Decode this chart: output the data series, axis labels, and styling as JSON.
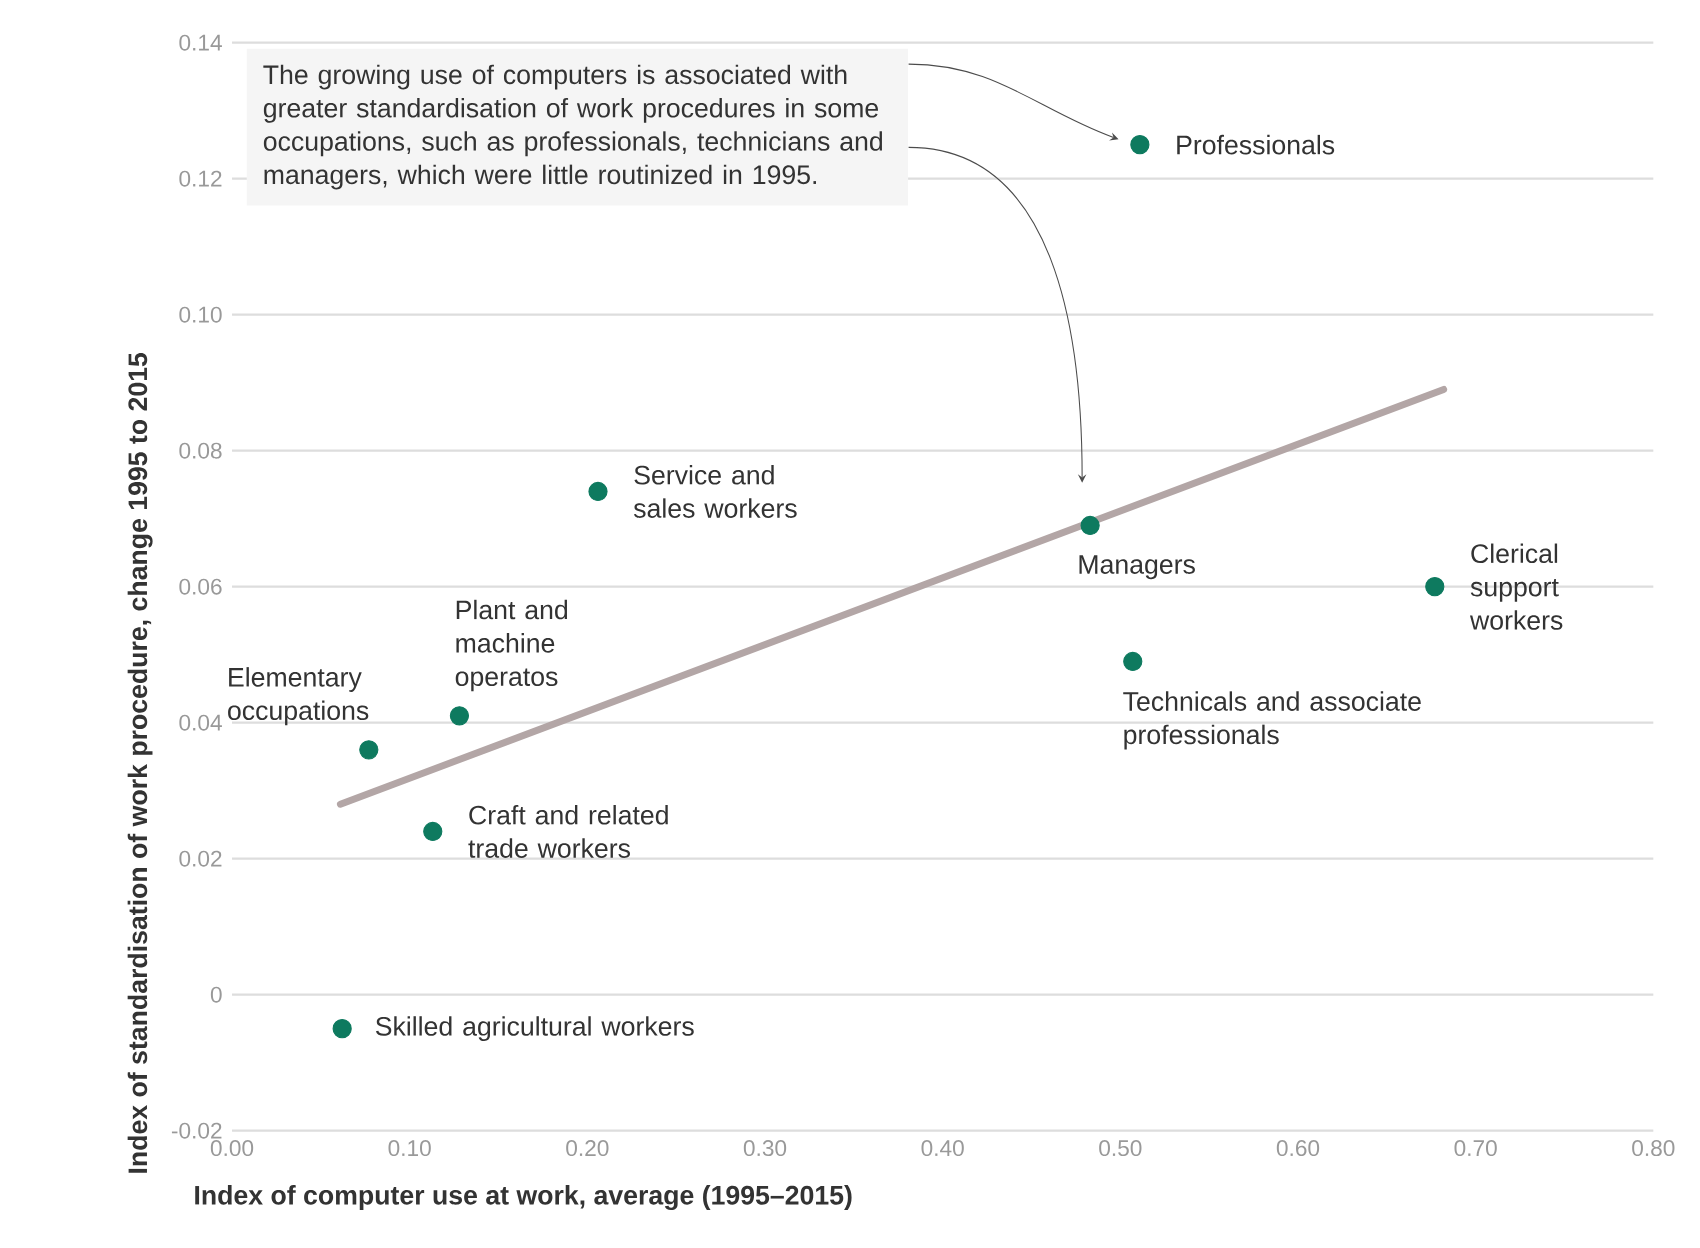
{
  "chart_data": {
    "type": "scatter",
    "xlabel": "Index of computer use at work, average (1995–2015)",
    "ylabel": "Index of standardisation of work procedure, change 1995 to 2015",
    "xlim": [
      0,
      0.8
    ],
    "ylim": [
      -0.02,
      0.14
    ],
    "xticks": [
      {
        "value": 0,
        "label": "0.00"
      },
      {
        "value": 0.1,
        "label": "0.10"
      },
      {
        "value": 0.2,
        "label": "0.20"
      },
      {
        "value": 0.3,
        "label": "0.30"
      },
      {
        "value": 0.4,
        "label": "0.40"
      },
      {
        "value": 0.5,
        "label": "0.50"
      },
      {
        "value": 0.6,
        "label": "0.60"
      },
      {
        "value": 0.7,
        "label": "0.70"
      },
      {
        "value": 0.8,
        "label": "0.80"
      }
    ],
    "yticks": [
      {
        "value": -0.02,
        "label": "-0.02"
      },
      {
        "value": 0,
        "label": "0"
      },
      {
        "value": 0.02,
        "label": "0.02"
      },
      {
        "value": 0.04,
        "label": "0.04"
      },
      {
        "value": 0.06,
        "label": "0.06"
      },
      {
        "value": 0.08,
        "label": "0.08"
      },
      {
        "value": 0.1,
        "label": "0.10"
      },
      {
        "value": 0.12,
        "label": "0.12"
      },
      {
        "value": 0.14,
        "label": "0.14"
      }
    ],
    "grid": "y",
    "series": [
      {
        "marker": "circle",
        "color": "#0e7a5f",
        "x": [
          0.511,
          0.206,
          0.483,
          0.677,
          0.507,
          0.128,
          0.077,
          0.113,
          0.062
        ],
        "values": [
          0.125,
          0.074,
          0.069,
          0.06,
          0.049,
          0.041,
          0.036,
          0.024,
          -0.005
        ]
      },
      {
        "type": "line",
        "marker": "none",
        "color": "#b3a6a6",
        "x": [
          0.061,
          0.682
        ],
        "values": [
          0.028,
          0.089
        ]
      }
    ],
    "annotations": [
      {
        "text": "Professionals",
        "x": 0.511,
        "y": 0.125
      },
      {
        "text": "Service and sales workers",
        "x": 0.206,
        "y": 0.074
      },
      {
        "text": "Managers",
        "x": 0.483,
        "y": 0.069
      },
      {
        "text": "Clerical support workers",
        "x": 0.677,
        "y": 0.06
      },
      {
        "text": "Technicals and associate professionals",
        "x": 0.507,
        "y": 0.049
      },
      {
        "text": "Plant and machine operatos",
        "x": 0.128,
        "y": 0.041
      },
      {
        "text": "Elementary occupations",
        "x": 0.077,
        "y": 0.036
      },
      {
        "text": "Craft and related trade workers",
        "x": 0.113,
        "y": 0.024
      },
      {
        "text": "Skilled agricultural workers",
        "x": 0.062,
        "y": -0.005
      },
      "The growing use of computers is associated with greater standardisation of work procedures in some occupations, such as professionals, technicians and managers, which were little routinized in 1995."
    ]
  }
}
